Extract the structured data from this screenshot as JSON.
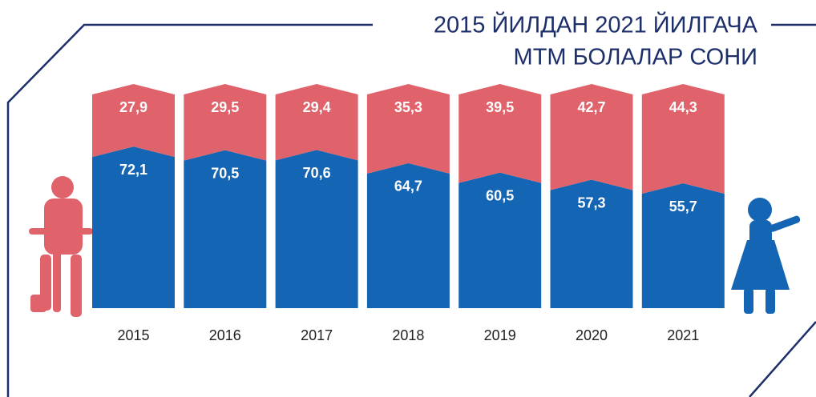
{
  "chart_data": {
    "type": "stacked_bar",
    "title": [
      "2015 ЙИЛДАН 2021 ЙИЛГАЧА",
      "МТМ БОЛАЛАР СОНИ"
    ],
    "categories": [
      "2015",
      "2016",
      "2017",
      "2018",
      "2019",
      "2020",
      "2021"
    ],
    "series": [
      {
        "color": "#1565b5",
        "values": [
          72.1,
          70.5,
          70.6,
          64.7,
          60.5,
          57.3,
          55.7
        ],
        "value_labels": [
          "72,1",
          "70,5",
          "70,6",
          "64,7",
          "60,5",
          "57,3",
          "55,7"
        ]
      },
      {
        "color": "#e0636b",
        "values": [
          27.9,
          29.5,
          29.4,
          35.3,
          39.5,
          42.7,
          44.3
        ],
        "value_labels": [
          "27,9",
          "29,5",
          "29,4",
          "35,3",
          "39,5",
          "42,7",
          "44,3"
        ]
      }
    ]
  }
}
